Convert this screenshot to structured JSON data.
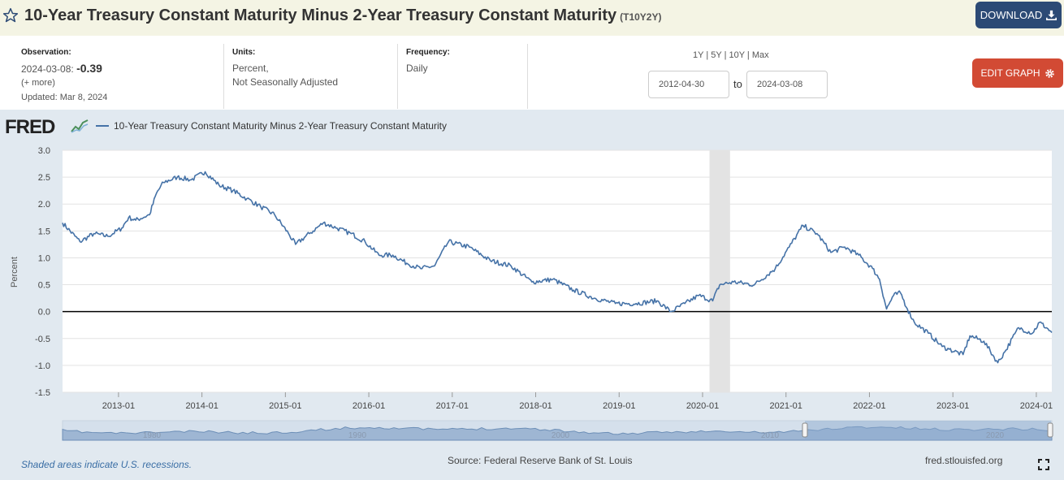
{
  "header": {
    "title": "10-Year Treasury Constant Maturity Minus 2-Year Treasury Constant Maturity",
    "series_id": "(T10Y2Y)",
    "download_label": "DOWNLOAD",
    "star_icon": "star-outline-icon",
    "download_icon": "download-icon"
  },
  "info": {
    "observation_label": "Observation:",
    "observation_date": "2024-03-08:",
    "observation_value": "-0.39",
    "more_link": "(+ more)",
    "updated": "Updated: Mar 8, 2024",
    "units_label": "Units:",
    "units_line1": "Percent,",
    "units_line2": "Not Seasonally Adjusted",
    "frequency_label": "Frequency:",
    "frequency_value": "Daily",
    "ranges": [
      "1Y",
      "5Y",
      "10Y",
      "Max"
    ],
    "date_from": "2012-04-30",
    "to_label": "to",
    "date_to": "2024-03-08",
    "edit_label": "EDIT GRAPH",
    "gear_icon": "gear-icon"
  },
  "graph": {
    "logo_text": "FRED",
    "legend_label": "10-Year Treasury Constant Maturity Minus 2-Year Treasury Constant Maturity",
    "navigator_labels": [
      "1980",
      "1990",
      "2000",
      "2010",
      "2020"
    ],
    "footer_note": "Shaded areas indicate U.S. recessions.",
    "source": "Source: Federal Reserve Bank of St. Louis",
    "url": "fred.stlouisfed.org",
    "fullscreen_icon": "fullscreen-icon"
  },
  "chart_data": {
    "type": "line",
    "title": "",
    "xlabel": "",
    "ylabel": "Percent",
    "xlim": [
      "2012-04-30",
      "2024-03-08"
    ],
    "ylim": [
      -1.5,
      3.0
    ],
    "yticks": [
      3.0,
      2.5,
      2.0,
      1.5,
      1.0,
      0.5,
      0.0,
      -0.5,
      -1.0,
      -1.5
    ],
    "ytick_labels": [
      "3.0",
      "2.5",
      "2.0",
      "1.5",
      "1.0",
      "0.5",
      "0.0",
      "-0.5",
      "-1.0",
      "-1.5"
    ],
    "xticks": [
      "2013-01",
      "2014-01",
      "2015-01",
      "2016-01",
      "2017-01",
      "2018-01",
      "2019-01",
      "2020-01",
      "2021-01",
      "2022-01",
      "2023-01",
      "2024-01"
    ],
    "recessions": [
      {
        "start": "2020-02",
        "end": "2020-04"
      }
    ],
    "zero_line": true,
    "grid": true,
    "line_color": "#4572a7",
    "series": [
      {
        "x": [
          "2012-05",
          "2012-07",
          "2012-09",
          "2012-11",
          "2013-01",
          "2013-02",
          "2013-03",
          "2013-05",
          "2013-06",
          "2013-07",
          "2013-09",
          "2013-11",
          "2014-01",
          "2014-03",
          "2014-05",
          "2014-07",
          "2014-09",
          "2014-11",
          "2015-01",
          "2015-02",
          "2015-04",
          "2015-06",
          "2015-08",
          "2015-10",
          "2015-12",
          "2016-02",
          "2016-04",
          "2016-06",
          "2016-08",
          "2016-10",
          "2016-12",
          "2017-03",
          "2017-06",
          "2017-09",
          "2017-12",
          "2018-03",
          "2018-06",
          "2018-09",
          "2018-12",
          "2019-03",
          "2019-06",
          "2019-08",
          "2019-10",
          "2019-12",
          "2020-02",
          "2020-03",
          "2020-05",
          "2020-08",
          "2020-11",
          "2021-01",
          "2021-03",
          "2021-05",
          "2021-07",
          "2021-09",
          "2021-11",
          "2022-01",
          "2022-02",
          "2022-03",
          "2022-04",
          "2022-05",
          "2022-06",
          "2022-07",
          "2022-09",
          "2022-11",
          "2022-12",
          "2023-02",
          "2023-03",
          "2023-05",
          "2023-07",
          "2023-08",
          "2023-10",
          "2023-12",
          "2024-01",
          "2024-02",
          "2024-03"
        ],
        "y": [
          1.65,
          1.3,
          1.45,
          1.4,
          1.55,
          1.75,
          1.7,
          1.8,
          2.2,
          2.4,
          2.5,
          2.45,
          2.6,
          2.35,
          2.25,
          2.1,
          1.95,
          1.8,
          1.45,
          1.25,
          1.45,
          1.65,
          1.55,
          1.45,
          1.3,
          1.05,
          1.05,
          0.9,
          0.8,
          0.85,
          1.3,
          1.2,
          0.95,
          0.85,
          0.55,
          0.6,
          0.4,
          0.25,
          0.15,
          0.15,
          0.2,
          0.0,
          0.15,
          0.3,
          0.2,
          0.5,
          0.55,
          0.5,
          0.8,
          1.2,
          1.6,
          1.45,
          1.1,
          1.2,
          1.05,
          0.8,
          0.6,
          0.05,
          0.3,
          0.35,
          0.05,
          -0.2,
          -0.4,
          -0.65,
          -0.7,
          -0.8,
          -0.45,
          -0.55,
          -0.95,
          -0.75,
          -0.3,
          -0.4,
          -0.2,
          -0.3,
          -0.39
        ]
      }
    ]
  }
}
